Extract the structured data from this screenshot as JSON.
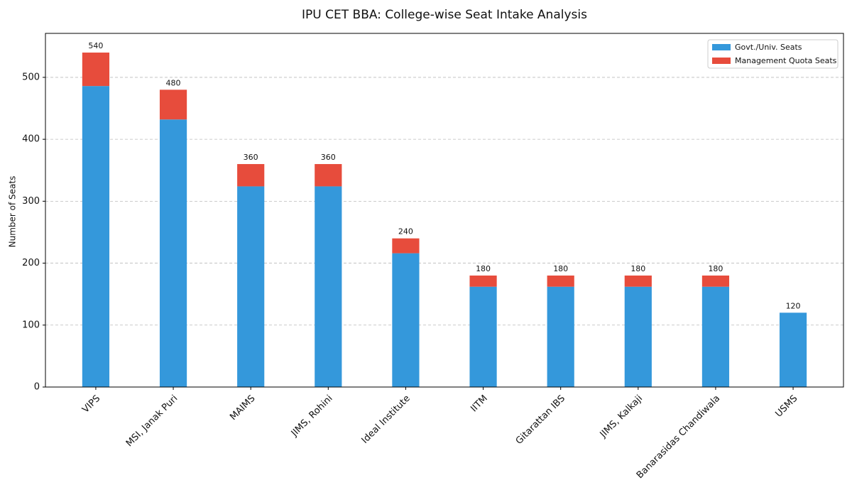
{
  "chart_data": {
    "type": "stacked_bar",
    "title": "IPU CET BBA: College-wise Seat Intake Analysis",
    "y_label": "Number of Seats",
    "categories": [
      "VIPS",
      "MSI, Janak Puri",
      "MAIMS",
      "JIMS, Rohini",
      "Ideal Institute",
      "IITM",
      "Gitarattan IBS",
      "JIMS, Kalkaji",
      "Banarasidas Chandiwala",
      "USMS"
    ],
    "series": [
      {
        "name": "Govt./Univ. Seats",
        "color": "#3498db",
        "values": [
          486,
          432,
          324,
          324,
          216,
          162,
          162,
          162,
          162,
          120
        ]
      },
      {
        "name": "Management Quota Seats",
        "color": "#e74c3c",
        "values": [
          54,
          48,
          36,
          36,
          24,
          18,
          18,
          18,
          18,
          0
        ]
      }
    ],
    "totals": [
      540,
      480,
      360,
      360,
      240,
      180,
      180,
      180,
      180,
      120
    ],
    "ylim": [
      0,
      571
    ],
    "yticks": [
      0,
      100,
      200,
      300,
      400,
      500
    ],
    "grid": true,
    "legend": "upper right"
  }
}
